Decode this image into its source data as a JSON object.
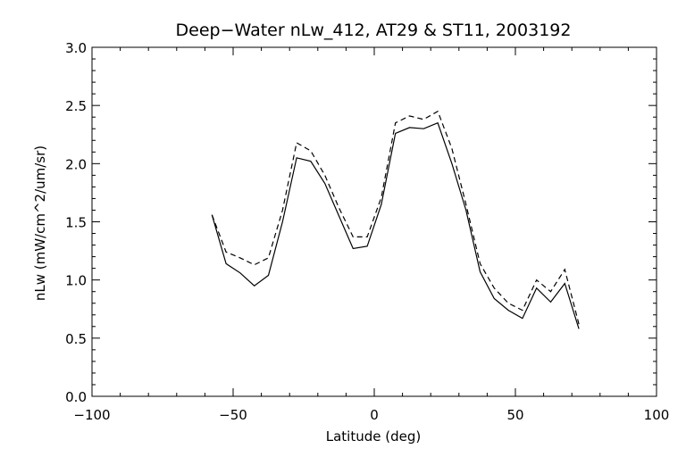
{
  "chart_data": {
    "type": "line",
    "title": "Deep−Water nLw_412, AT29 & ST11, 2003192",
    "xlabel": "Latitude (deg)",
    "ylabel": "nLw (mW/cm^2/um/sr)",
    "xlim": [
      -100,
      100
    ],
    "ylim": [
      0.0,
      3.0
    ],
    "xticks": [
      -100,
      -50,
      0,
      50,
      100
    ],
    "xtick_labels": [
      "−100",
      "−50",
      "0",
      "50",
      "100"
    ],
    "yticks": [
      0.0,
      0.5,
      1.0,
      1.5,
      2.0,
      2.5,
      3.0
    ],
    "ytick_labels": [
      "0.0",
      "0.5",
      "1.0",
      "1.5",
      "2.0",
      "2.5",
      "3.0"
    ],
    "grid": false,
    "legend": "none",
    "series": [
      {
        "style": "solid",
        "color": "#000000",
        "x": [
          -57.5,
          -52.5,
          -47.5,
          -42.5,
          -37.5,
          -32.5,
          -27.5,
          -22.5,
          -17.5,
          -12.5,
          -7.5,
          -2.5,
          2.5,
          7.5,
          12.5,
          17.5,
          22.5,
          27.5,
          32.5,
          37.5,
          42.5,
          47.5,
          52.5,
          57.5,
          62.5,
          67.5,
          72.5
        ],
        "y": [
          1.56,
          1.14,
          1.06,
          0.95,
          1.04,
          1.5,
          2.05,
          2.02,
          1.83,
          1.55,
          1.27,
          1.29,
          1.65,
          2.26,
          2.31,
          2.3,
          2.35,
          2.0,
          1.6,
          1.07,
          0.84,
          0.74,
          0.67,
          0.93,
          0.81,
          0.97,
          0.58
        ]
      },
      {
        "style": "dashed",
        "color": "#000000",
        "x": [
          -57.5,
          -52.5,
          -47.5,
          -42.5,
          -37.5,
          -32.5,
          -27.5,
          -22.5,
          -17.5,
          -12.5,
          -7.5,
          -2.5,
          2.5,
          7.5,
          12.5,
          17.5,
          22.5,
          27.5,
          32.5,
          37.5,
          42.5,
          47.5,
          52.5,
          57.5,
          62.5,
          67.5,
          72.5
        ],
        "y": [
          1.56,
          1.24,
          1.19,
          1.13,
          1.19,
          1.6,
          2.18,
          2.11,
          1.9,
          1.62,
          1.37,
          1.37,
          1.71,
          2.35,
          2.41,
          2.38,
          2.45,
          2.13,
          1.65,
          1.14,
          0.93,
          0.8,
          0.74,
          1.0,
          0.9,
          1.09,
          0.62
        ]
      }
    ]
  }
}
